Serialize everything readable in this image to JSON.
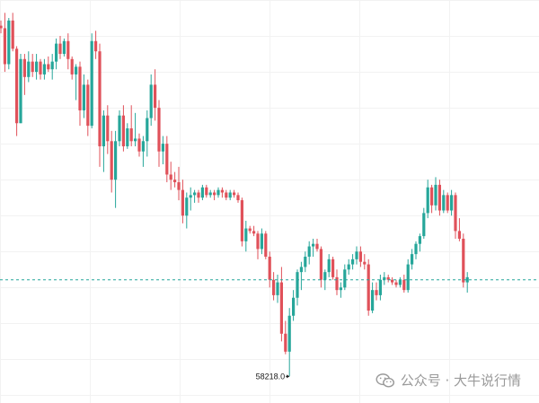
{
  "chart_data": {
    "type": "candlestick",
    "up_color": "#26a69a",
    "down_color": "#e0515a",
    "grid": true,
    "ylim": [
      57700,
      65550
    ],
    "current_price_line": 60100,
    "annotations": [
      {
        "kind": "low-marker",
        "text": "58218.0",
        "value": 58218.0,
        "candle_index": 73
      }
    ],
    "candles": [
      [
        65050,
        65150,
        64900,
        65000
      ],
      [
        65000,
        65300,
        64150,
        64300
      ],
      [
        64300,
        65200,
        64200,
        65150
      ],
      [
        65150,
        65300,
        64550,
        64600
      ],
      [
        64600,
        64650,
        62900,
        63150
      ],
      [
        63150,
        64500,
        63150,
        64400
      ],
      [
        64400,
        64500,
        63700,
        64050
      ],
      [
        64050,
        64550,
        63950,
        64350
      ],
      [
        64350,
        64500,
        64050,
        64150
      ],
      [
        64150,
        64500,
        64000,
        64350
      ],
      [
        64350,
        64400,
        64000,
        64100
      ],
      [
        64100,
        64400,
        64000,
        64300
      ],
      [
        64300,
        64450,
        64150,
        64200
      ],
      [
        64200,
        64500,
        64000,
        64350
      ],
      [
        64350,
        64800,
        64200,
        64700
      ],
      [
        64700,
        64850,
        64400,
        64500
      ],
      [
        64500,
        64800,
        64450,
        64750
      ],
      [
        64750,
        64900,
        64200,
        64400
      ],
      [
        64400,
        64450,
        64000,
        64100
      ],
      [
        64100,
        64300,
        63600,
        64250
      ],
      [
        64250,
        64350,
        63100,
        63400
      ],
      [
        63400,
        64100,
        63250,
        63900
      ],
      [
        63900,
        64000,
        62900,
        63100
      ],
      [
        63100,
        64900,
        63050,
        64750
      ],
      [
        64750,
        64950,
        64400,
        64550
      ],
      [
        64550,
        64700,
        62300,
        62700
      ],
      [
        62700,
        63400,
        62200,
        63300
      ],
      [
        63300,
        63500,
        62550,
        62800
      ],
      [
        62800,
        63000,
        61800,
        62050
      ],
      [
        62050,
        63000,
        61500,
        62800
      ],
      [
        62800,
        63400,
        62700,
        63300
      ],
      [
        63300,
        63500,
        62600,
        62700
      ],
      [
        62700,
        63150,
        62650,
        63050
      ],
      [
        63050,
        63500,
        62700,
        62800
      ],
      [
        62800,
        63350,
        62700,
        62850
      ],
      [
        62850,
        62950,
        62500,
        62600
      ],
      [
        62600,
        62900,
        62300,
        62800
      ],
      [
        62800,
        63400,
        62500,
        63250
      ],
      [
        63250,
        64100,
        63100,
        63900
      ],
      [
        63900,
        64200,
        63200,
        63450
      ],
      [
        63450,
        63600,
        62300,
        62600
      ],
      [
        62600,
        62900,
        62350,
        62750
      ],
      [
        62750,
        62900,
        62000,
        62150
      ],
      [
        62150,
        62400,
        61850,
        62050
      ],
      [
        62050,
        62200,
        61900,
        62000
      ],
      [
        62000,
        62300,
        61650,
        61850
      ],
      [
        61850,
        62050,
        61200,
        61350
      ],
      [
        61350,
        61800,
        61100,
        61700
      ],
      [
        61700,
        61900,
        61450,
        61750
      ],
      [
        61750,
        61850,
        61600,
        61800
      ],
      [
        61800,
        61850,
        61600,
        61700
      ],
      [
        61700,
        61950,
        61650,
        61900
      ],
      [
        61900,
        61950,
        61700,
        61750
      ],
      [
        61750,
        61850,
        61700,
        61800
      ],
      [
        61800,
        61850,
        61650,
        61750
      ],
      [
        61750,
        61900,
        61700,
        61850
      ],
      [
        61850,
        61900,
        61700,
        61800
      ],
      [
        61800,
        61850,
        61650,
        61700
      ],
      [
        61700,
        61850,
        61650,
        61800
      ],
      [
        61800,
        61850,
        61700,
        61750
      ],
      [
        61750,
        61800,
        61600,
        61650
      ],
      [
        61650,
        61700,
        60750,
        60850
      ],
      [
        60850,
        61250,
        60650,
        61100
      ],
      [
        61100,
        61150,
        61000,
        61050
      ],
      [
        61050,
        61150,
        60950,
        61000
      ],
      [
        61000,
        61050,
        60500,
        60700
      ],
      [
        60700,
        61100,
        60600,
        61000
      ],
      [
        61000,
        61050,
        60500,
        60550
      ],
      [
        60550,
        60650,
        59950,
        60100
      ],
      [
        60100,
        60250,
        59700,
        59800
      ],
      [
        59800,
        60200,
        59650,
        60050
      ],
      [
        60050,
        60350,
        58900,
        59050
      ],
      [
        59050,
        59300,
        58650,
        58700
      ],
      [
        58700,
        59550,
        58218,
        59400
      ],
      [
        59400,
        59900,
        59300,
        59750
      ],
      [
        59750,
        60300,
        59600,
        60250
      ],
      [
        60250,
        60450,
        59900,
        60350
      ],
      [
        60350,
        60650,
        60250,
        60550
      ],
      [
        60550,
        60850,
        60400,
        60750
      ],
      [
        60750,
        60900,
        60550,
        60800
      ],
      [
        60800,
        60900,
        60650,
        60700
      ],
      [
        60700,
        60750,
        59950,
        60100
      ],
      [
        60100,
        60300,
        59900,
        60250
      ],
      [
        60250,
        60600,
        60150,
        60500
      ],
      [
        60500,
        60550,
        60100,
        60150
      ],
      [
        60150,
        60300,
        59800,
        59900
      ],
      [
        59900,
        60050,
        59750,
        59950
      ],
      [
        59950,
        60400,
        59900,
        60300
      ],
      [
        60300,
        60500,
        60200,
        60400
      ],
      [
        60400,
        60600,
        60300,
        60500
      ],
      [
        60500,
        60750,
        60400,
        60650
      ],
      [
        60650,
        60750,
        60350,
        60450
      ],
      [
        60450,
        60600,
        60300,
        60400
      ],
      [
        60400,
        60500,
        59400,
        59500
      ],
      [
        59500,
        60050,
        59450,
        59900
      ],
      [
        59900,
        60050,
        59700,
        59800
      ],
      [
        59800,
        60200,
        59700,
        60100
      ],
      [
        60100,
        60250,
        60000,
        60150
      ],
      [
        60150,
        60200,
        60050,
        60100
      ],
      [
        60100,
        60150,
        60000,
        60050
      ],
      [
        60050,
        60100,
        59950,
        60000
      ],
      [
        60000,
        60150,
        59950,
        60100
      ],
      [
        60100,
        60200,
        59850,
        59900
      ],
      [
        59900,
        60500,
        59850,
        60400
      ],
      [
        60400,
        60700,
        60300,
        60600
      ],
      [
        60600,
        60850,
        60500,
        60800
      ],
      [
        60800,
        61000,
        60650,
        60950
      ],
      [
        60950,
        61500,
        60900,
        61400
      ],
      [
        61400,
        62050,
        61300,
        61900
      ],
      [
        61900,
        61950,
        61400,
        61550
      ],
      [
        61550,
        62100,
        61450,
        61950
      ],
      [
        61950,
        62050,
        61350,
        61450
      ],
      [
        61450,
        61850,
        61400,
        61750
      ],
      [
        61750,
        61800,
        61400,
        61450
      ],
      [
        61450,
        61850,
        61350,
        61750
      ],
      [
        61750,
        61800,
        60900,
        61050
      ],
      [
        61050,
        61300,
        60850,
        60900
      ],
      [
        60900,
        61000,
        59950,
        60050
      ],
      [
        60050,
        60250,
        59850,
        60150
      ]
    ]
  },
  "watermark": {
    "icon": "wechat-icon",
    "text": "公众号 · 大牛说行情"
  }
}
